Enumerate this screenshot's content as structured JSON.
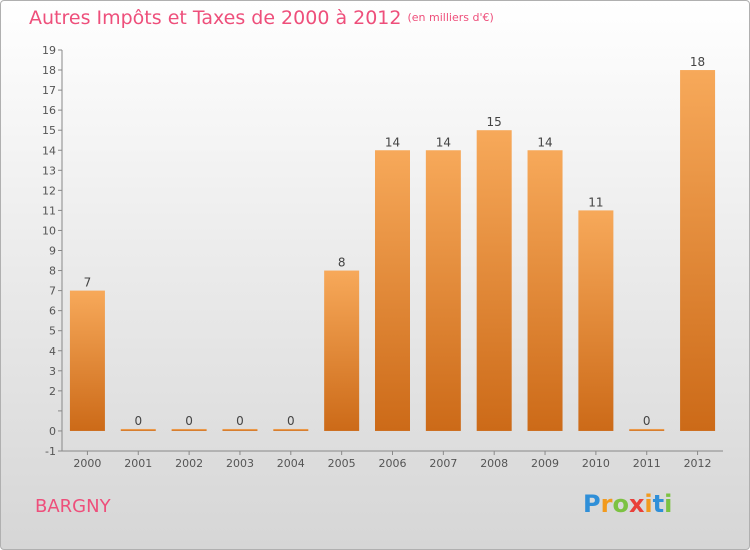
{
  "header": {
    "title": "Autres Impôts et Taxes de 2000 à 2012",
    "unit": "(en milliers d'€)"
  },
  "commune": "BARGNY",
  "logo": {
    "letters": [
      {
        "ch": "P",
        "color": "#2f8fd8"
      },
      {
        "ch": "r",
        "color": "#f29a1d"
      },
      {
        "ch": "o",
        "color": "#7cc242"
      },
      {
        "ch": "x",
        "color": "#e9403a"
      },
      {
        "ch": "i",
        "color": "#f29a1d"
      },
      {
        "ch": "t",
        "color": "#2f8fd8"
      },
      {
        "ch": "i",
        "color": "#7cc242"
      }
    ]
  },
  "chart_data": {
    "type": "bar",
    "title": "Autres Impôts et Taxes de 2000 à 2012",
    "subtitle": "(en milliers d'€)",
    "categories": [
      "2000",
      "2001",
      "2002",
      "2003",
      "2004",
      "2005",
      "2006",
      "2007",
      "2008",
      "2009",
      "2010",
      "2011",
      "2012"
    ],
    "values": [
      7,
      0,
      0,
      0,
      0,
      8,
      14,
      14,
      15,
      14,
      11,
      0,
      18
    ],
    "yticks": [
      "-1",
      "0",
      "",
      "2",
      "3",
      "4",
      "5",
      "6",
      "7",
      "8",
      "9",
      "10",
      "11",
      "12",
      "13",
      "14",
      "15",
      "16",
      "17",
      "18",
      "19"
    ],
    "ylim": [
      -1,
      19
    ],
    "grid": false,
    "bar_color_top": "#f7a95a",
    "bar_color_bottom": "#cc6a18"
  }
}
